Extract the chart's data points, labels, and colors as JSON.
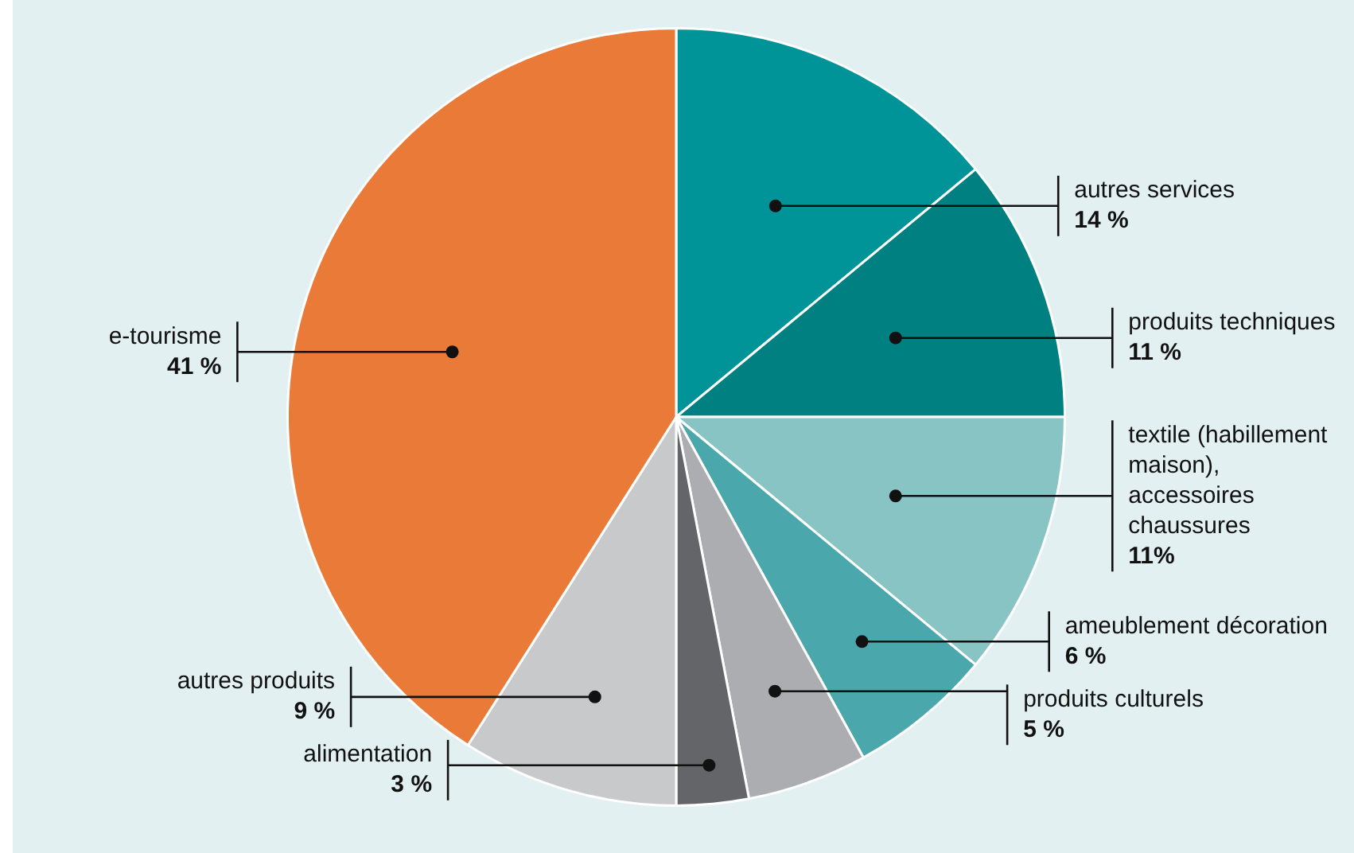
{
  "chart_data": {
    "type": "pie",
    "categories": [
      "autres services",
      "produits techniques",
      "textile (habillement maison), accessoires chaussures",
      "ameublement décoration",
      "produits culturels",
      "alimentation",
      "autres produits",
      "e-tourisme"
    ],
    "values": [
      14,
      11,
      11,
      6,
      5,
      3,
      9,
      41
    ],
    "colors": [
      "#009499",
      "#008080",
      "#88c4c4",
      "#4aa8ac",
      "#acadb0",
      "#636569",
      "#c8c9cb",
      "#e97a37"
    ],
    "value_labels": [
      "14 %",
      "11 %",
      "11%",
      "6 %",
      "5 %",
      "3 %",
      "9 %",
      "41 %"
    ],
    "legend": false
  }
}
